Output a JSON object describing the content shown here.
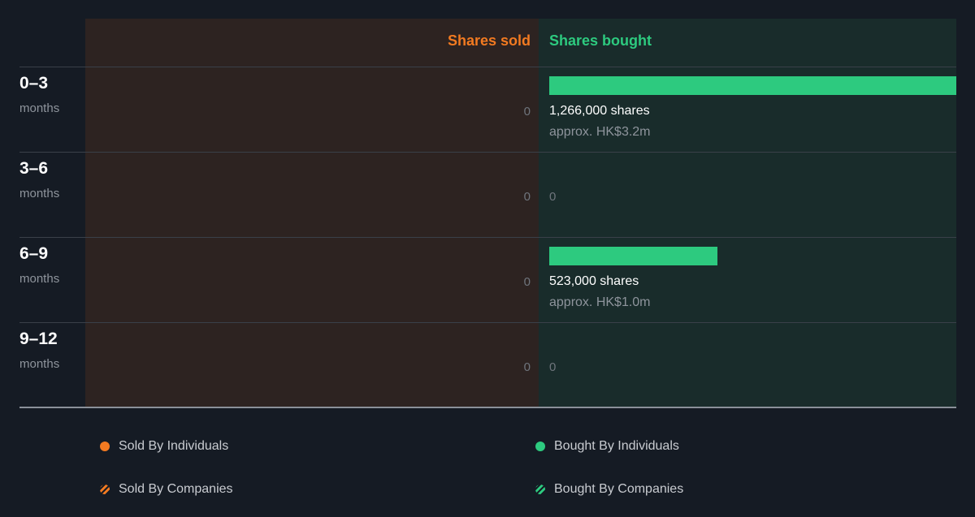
{
  "chart_data": {
    "type": "bar",
    "header_sold": "Shares sold",
    "header_bought": "Shares bought",
    "max_shares": 1266000,
    "periods": [
      {
        "label": "0–3",
        "unit": "months",
        "sold": 0,
        "sold_label": "0",
        "bought": 1266000,
        "bought_label": "1,266,000 shares",
        "bought_value_label": "approx. HK$3.2m"
      },
      {
        "label": "3–6",
        "unit": "months",
        "sold": 0,
        "sold_label": "0",
        "bought": 0,
        "bought_label": "0",
        "bought_value_label": ""
      },
      {
        "label": "6–9",
        "unit": "months",
        "sold": 0,
        "sold_label": "0",
        "bought": 523000,
        "bought_label": "523,000 shares",
        "bought_value_label": "approx. HK$1.0m"
      },
      {
        "label": "9–12",
        "unit": "months",
        "sold": 0,
        "sold_label": "0",
        "bought": 0,
        "bought_label": "0",
        "bought_value_label": ""
      }
    ],
    "legend": [
      {
        "label": "Sold By Individuals",
        "color": "#f27a21",
        "style": "solid"
      },
      {
        "label": "Bought By Individuals",
        "color": "#2dca7f",
        "style": "solid"
      },
      {
        "label": "Sold By Companies",
        "color": "#f27a21",
        "style": "hatched"
      },
      {
        "label": "Bought By Companies",
        "color": "#2dca7f",
        "style": "hatched"
      }
    ],
    "colors": {
      "sold": "#f27a21",
      "bought": "#2dca7f"
    }
  }
}
